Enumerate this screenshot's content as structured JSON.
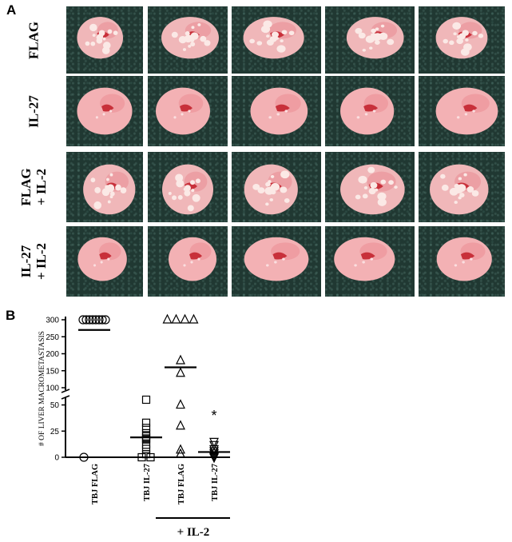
{
  "figure": {
    "panel_a_label": "A",
    "panel_b_label": "B",
    "rows": [
      {
        "label_lines": [
          "FLAG"
        ],
        "appearance": "heavy-metastasis"
      },
      {
        "label_lines": [
          "IL-27"
        ],
        "appearance": "smooth"
      },
      {
        "label_lines": [
          "FLAG",
          "+ IL-2"
        ],
        "appearance": "heavy-metastasis"
      },
      {
        "label_lines": [
          "IL-27",
          "+ IL-2"
        ],
        "appearance": "smooth"
      }
    ],
    "photos_per_row": 5
  },
  "chart_data": {
    "type": "scatter",
    "ylabel": "# OF LIVER MACROMETASTASIS",
    "categories": [
      "TBJ FLAG",
      "TBJ IL-27",
      "TBJ FLAG",
      "TBJ IL-27"
    ],
    "group_label": "+ IL-2",
    "y_ticks_upper": [
      100,
      150,
      200,
      250,
      300
    ],
    "y_ticks_lower": [
      0,
      25,
      50
    ],
    "y_axis_break": [
      55,
      100
    ],
    "series": [
      {
        "marker": "circle",
        "values": [
          300,
          300,
          300,
          300,
          300,
          300,
          300,
          300,
          0
        ],
        "mean": 270
      },
      {
        "marker": "square",
        "values": [
          55,
          33,
          28,
          23,
          20,
          18,
          17,
          12,
          8,
          3,
          0,
          0
        ],
        "mean": 19
      },
      {
        "marker": "triangle-up",
        "values": [
          300,
          300,
          300,
          300,
          180,
          143,
          50,
          30,
          7,
          3
        ],
        "mean": 160
      },
      {
        "marker": "triangle-down",
        "values": [
          15,
          12,
          8,
          6,
          4,
          2,
          1,
          0
        ],
        "mean": 5
      }
    ],
    "annotations": [
      {
        "category_index": 3,
        "text": "*"
      }
    ]
  }
}
